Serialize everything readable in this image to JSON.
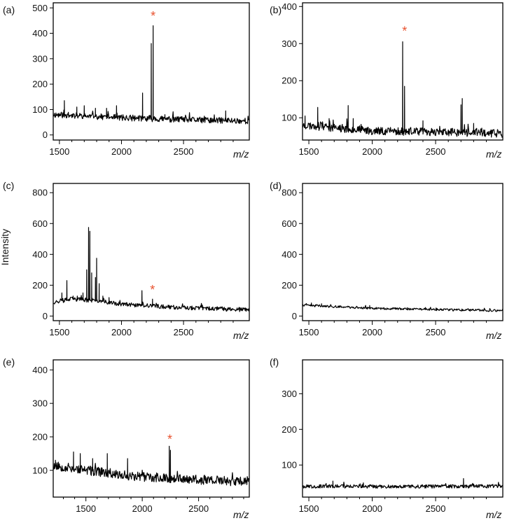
{
  "figure": {
    "ylabel": "Intensity"
  },
  "chart_data": [
    {
      "panel": "(a)",
      "type": "line",
      "xlabel": "m/z",
      "ylabel": "Intensity",
      "xlim": [
        1450,
        3030
      ],
      "ylim": [
        -20,
        520
      ],
      "xticks": [
        1500,
        2000,
        2500
      ],
      "xtick_labels": [
        "1500",
        "2000",
        "2500"
      ],
      "yticks": [
        0,
        100,
        200,
        300,
        400,
        500
      ],
      "ytick_labels": [
        "0",
        "100",
        "200",
        "300",
        "400",
        "500"
      ],
      "baseline": [
        [
          1450,
          80
        ],
        [
          2000,
          68
        ],
        [
          2500,
          60
        ],
        [
          3030,
          55
        ]
      ],
      "noise": 12,
      "seed": 11,
      "peaks": [
        [
          1540,
          135
        ],
        [
          1640,
          110
        ],
        [
          1700,
          115
        ],
        [
          1790,
          105
        ],
        [
          1880,
          105
        ],
        [
          1960,
          115
        ],
        [
          2170,
          165
        ],
        [
          2240,
          360
        ],
        [
          2255,
          430
        ],
        [
          2350,
          80
        ],
        [
          2840,
          95
        ]
      ],
      "marker": {
        "text": "*",
        "x": 2255,
        "y": 470
      }
    },
    {
      "panel": "(b)",
      "type": "line",
      "xlabel": "m/z",
      "ylabel": "Intensity",
      "xlim": [
        1450,
        3030
      ],
      "ylim": [
        40,
        410
      ],
      "xticks": [
        1500,
        2000,
        2500
      ],
      "xtick_labels": [
        "1500",
        "2000",
        "2500"
      ],
      "yticks": [
        100,
        200,
        300,
        400
      ],
      "ytick_labels": [
        "100",
        "200",
        "300",
        "400"
      ],
      "baseline": [
        [
          1450,
          80
        ],
        [
          2000,
          65
        ],
        [
          2500,
          62
        ],
        [
          3030,
          58
        ]
      ],
      "noise": 11,
      "seed": 23,
      "peaks": [
        [
          1470,
          105
        ],
        [
          1570,
          128
        ],
        [
          1660,
          98
        ],
        [
          1810,
          133
        ],
        [
          1850,
          98
        ],
        [
          2240,
          305
        ],
        [
          2255,
          185
        ],
        [
          2400,
          92
        ],
        [
          2700,
          135
        ],
        [
          2710,
          152
        ],
        [
          2800,
          85
        ]
      ],
      "marker": {
        "text": "*",
        "x": 2255,
        "y": 335
      }
    },
    {
      "panel": "(c)",
      "type": "line",
      "xlabel": "m/z",
      "ylabel": "Intensity",
      "xlim": [
        1450,
        3030
      ],
      "ylim": [
        -30,
        860
      ],
      "xticks": [
        1500,
        2000,
        2500
      ],
      "xtick_labels": [
        "1500",
        "2000",
        "2500"
      ],
      "yticks": [
        0,
        200,
        400,
        600,
        800
      ],
      "ytick_labels": [
        "0",
        "200",
        "400",
        "600",
        "800"
      ],
      "baseline": [
        [
          1450,
          90
        ],
        [
          1600,
          110
        ],
        [
          1800,
          100
        ],
        [
          2000,
          75
        ],
        [
          2500,
          55
        ],
        [
          3030,
          40
        ]
      ],
      "noise": 14,
      "seed": 37,
      "peaks": [
        [
          1520,
          150
        ],
        [
          1560,
          230
        ],
        [
          1610,
          130
        ],
        [
          1690,
          150
        ],
        [
          1720,
          300
        ],
        [
          1735,
          575
        ],
        [
          1745,
          550
        ],
        [
          1760,
          280
        ],
        [
          1790,
          250
        ],
        [
          1800,
          375
        ],
        [
          1820,
          210
        ],
        [
          1850,
          130
        ],
        [
          1900,
          120
        ],
        [
          2165,
          165
        ],
        [
          2250,
          110
        ]
      ],
      "marker": {
        "text": "*",
        "x": 2250,
        "y": 175
      }
    },
    {
      "panel": "(d)",
      "type": "line",
      "xlabel": "m/z",
      "ylabel": "Intensity",
      "xlim": [
        1450,
        3030
      ],
      "ylim": [
        -30,
        860
      ],
      "xticks": [
        1500,
        2000,
        2500
      ],
      "xtick_labels": [
        "1500",
        "2000",
        "2500"
      ],
      "yticks": [
        0,
        200,
        400,
        600,
        800
      ],
      "ytick_labels": [
        "0",
        "200",
        "400",
        "600",
        "800"
      ],
      "baseline": [
        [
          1450,
          70
        ],
        [
          2000,
          50
        ],
        [
          2500,
          42
        ],
        [
          3030,
          35
        ]
      ],
      "noise": 7,
      "seed": 41,
      "peaks": [
        [
          1520,
          85
        ],
        [
          1600,
          80
        ],
        [
          1980,
          68
        ]
      ]
    },
    {
      "panel": "(e)",
      "type": "line",
      "xlabel": "m/z",
      "ylabel": "Intensity",
      "xlim": [
        1210,
        2950
      ],
      "ylim": [
        20,
        430
      ],
      "xticks": [
        1500,
        2000,
        2500
      ],
      "xtick_labels": [
        "1500",
        "2000",
        "2500"
      ],
      "yticks": [
        100,
        200,
        300,
        400
      ],
      "ytick_labels": [
        "100",
        "200",
        "300",
        "400"
      ],
      "baseline": [
        [
          1210,
          115
        ],
        [
          1500,
          100
        ],
        [
          2000,
          80
        ],
        [
          2500,
          72
        ],
        [
          2950,
          65
        ]
      ],
      "noise": 14,
      "seed": 53,
      "peaks": [
        [
          1230,
          130
        ],
        [
          1390,
          155
        ],
        [
          1450,
          150
        ],
        [
          1560,
          135
        ],
        [
          1690,
          150
        ],
        [
          1870,
          135
        ],
        [
          2240,
          172
        ],
        [
          2250,
          160
        ]
      ],
      "marker": {
        "text": "*",
        "x": 2245,
        "y": 195
      }
    },
    {
      "panel": "(f)",
      "type": "line",
      "xlabel": "m/z",
      "ylabel": "Intensity",
      "xlim": [
        1450,
        3030
      ],
      "ylim": [
        10,
        395
      ],
      "xticks": [
        1500,
        2000,
        2500
      ],
      "xtick_labels": [
        "1500",
        "2000",
        "2500"
      ],
      "yticks": [
        100,
        200,
        300
      ],
      "ytick_labels": [
        "100",
        "200",
        "300"
      ],
      "baseline": [
        [
          1450,
          40
        ],
        [
          3030,
          40
        ]
      ],
      "noise": 5,
      "seed": 67,
      "peaks": [
        [
          1690,
          55
        ],
        [
          1930,
          50
        ],
        [
          2720,
          62
        ]
      ]
    }
  ]
}
